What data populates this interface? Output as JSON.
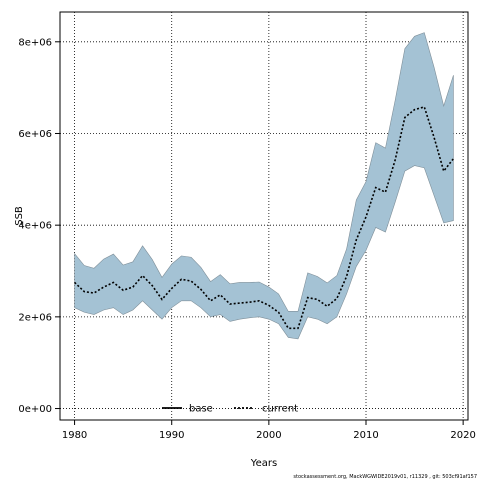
{
  "chart_data": {
    "type": "area",
    "xlabel": "Years",
    "ylabel": "SSB",
    "xlim": [
      1978.5,
      2020.5
    ],
    "ylim": [
      -250000,
      8650000
    ],
    "x_ticks": [
      1980,
      1990,
      2000,
      2010,
      2020
    ],
    "y_ticks": [
      0,
      2000000,
      4000000,
      6000000,
      8000000
    ],
    "y_tick_labels": [
      "0e+00",
      "2e+06",
      "4e+06",
      "6e+06",
      "8e+06"
    ],
    "grid": true,
    "legend_position": "bottom-center",
    "x": [
      1980,
      1981,
      1982,
      1983,
      1984,
      1985,
      1986,
      1987,
      1988,
      1989,
      1990,
      1991,
      1992,
      1993,
      1994,
      1995,
      1996,
      1997,
      1998,
      1999,
      2000,
      2001,
      2002,
      2003,
      2004,
      2005,
      2006,
      2007,
      2008,
      2009,
      2010,
      2011,
      2012,
      2013,
      2014,
      2015,
      2016,
      2017,
      2018,
      2019
    ],
    "series": [
      {
        "name": "current",
        "style": "dotted",
        "color": "#000000",
        "values": [
          2750000,
          2550000,
          2520000,
          2650000,
          2750000,
          2580000,
          2650000,
          2900000,
          2680000,
          2380000,
          2620000,
          2820000,
          2780000,
          2600000,
          2350000,
          2480000,
          2280000,
          2300000,
          2320000,
          2350000,
          2250000,
          2100000,
          1750000,
          1750000,
          2420000,
          2380000,
          2230000,
          2400000,
          2880000,
          3680000,
          4180000,
          4820000,
          4720000,
          5420000,
          6350000,
          6520000,
          6580000,
          5920000,
          5180000,
          5450000
        ],
        "lower": [
          2200000,
          2100000,
          2050000,
          2150000,
          2200000,
          2050000,
          2150000,
          2350000,
          2150000,
          1950000,
          2200000,
          2350000,
          2350000,
          2200000,
          2000000,
          2050000,
          1900000,
          1950000,
          1980000,
          2000000,
          1950000,
          1850000,
          1550000,
          1520000,
          2000000,
          1950000,
          1850000,
          2000000,
          2500000,
          3100000,
          3450000,
          3950000,
          3850000,
          4500000,
          5180000,
          5300000,
          5250000,
          4650000,
          4050000,
          4100000
        ],
        "upper": [
          3380000,
          3120000,
          3060000,
          3260000,
          3370000,
          3130000,
          3200000,
          3550000,
          3250000,
          2860000,
          3150000,
          3330000,
          3300000,
          3080000,
          2770000,
          2920000,
          2720000,
          2750000,
          2750000,
          2760000,
          2650000,
          2500000,
          2120000,
          2120000,
          2960000,
          2880000,
          2740000,
          2900000,
          3480000,
          4550000,
          4950000,
          5800000,
          5680000,
          6720000,
          7850000,
          8120000,
          8200000,
          7450000,
          6600000,
          7270000
        ]
      }
    ],
    "legend": [
      {
        "label": "base",
        "style": "solid",
        "color": "#000000"
      },
      {
        "label": "current",
        "style": "dotted",
        "color": "#000000"
      }
    ],
    "band_color": "#a4c2d4",
    "footer_text": "stockassessment.org, MackWGWIDE2019v01, r11329 , git: 503cf91af157"
  }
}
